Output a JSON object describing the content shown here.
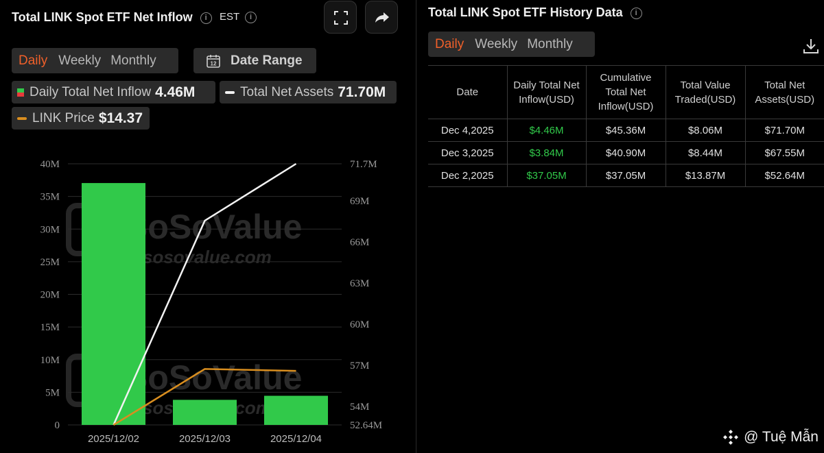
{
  "left": {
    "title": "Total LINK Spot ETF Net Inflow",
    "timezone": "EST",
    "period_tabs": [
      "Daily",
      "Weekly",
      "Monthly"
    ],
    "active_period": "Daily",
    "date_range_label": "Date Range",
    "calendar_icon_text": "12",
    "legend": {
      "inflow_label": "Daily Total Net Inflow",
      "inflow_value": "4.46M",
      "assets_label": "Total Net Assets",
      "assets_value": "71.70M",
      "price_label": "LINK Price",
      "price_value": "$14.37"
    },
    "colors": {
      "bar": "#31c94a",
      "assets_line": "#f2f2f2",
      "price_line": "#d98e1f",
      "active_tab": "#f0602a"
    },
    "watermark": {
      "brand": "SoSoValue",
      "url": "sosovalue.com"
    }
  },
  "chart_data": {
    "type": "bar",
    "categories": [
      "2025/12/02",
      "2025/12/03",
      "2025/12/04"
    ],
    "series": [
      {
        "name": "Daily Total Net Inflow",
        "type": "bar",
        "axis": "left",
        "values": [
          37.05,
          3.84,
          4.46
        ]
      },
      {
        "name": "Total Net Assets",
        "type": "line",
        "axis": "right",
        "values": [
          52.64,
          67.55,
          71.7
        ]
      },
      {
        "name": "LINK Price",
        "type": "line",
        "axis": "price",
        "values": [
          12.9,
          14.42,
          14.37
        ]
      }
    ],
    "y_left": {
      "ticks": [
        "0",
        "5M",
        "10M",
        "15M",
        "20M",
        "25M",
        "30M",
        "35M",
        "40M"
      ],
      "ylim": [
        0,
        40
      ]
    },
    "y_right": {
      "ticks": [
        "52.64M",
        "54M",
        "57M",
        "60M",
        "63M",
        "66M",
        "69M",
        "71.7M"
      ],
      "tick_values": [
        52.64,
        54,
        57,
        60,
        63,
        66,
        69,
        71.7
      ],
      "ylim": [
        52.64,
        71.7
      ]
    },
    "price_range": [
      12.9,
      20
    ],
    "grid": true
  },
  "right": {
    "title": "Total LINK Spot ETF History Data",
    "period_tabs": [
      "Daily",
      "Weekly",
      "Monthly"
    ],
    "active_period": "Daily",
    "columns": [
      "Date",
      "Daily Total Net Inflow(USD)",
      "Cumulative Total Net Inflow(USD)",
      "Total Value Traded(USD)",
      "Total Net Assets(USD)"
    ],
    "rows": [
      [
        "Dec 4,2025",
        "$4.46M",
        "$45.36M",
        "$8.06M",
        "$71.70M"
      ],
      [
        "Dec 3,2025",
        "$3.84M",
        "$40.90M",
        "$8.44M",
        "$67.55M"
      ],
      [
        "Dec 2,2025",
        "$37.05M",
        "$37.05M",
        "$13.87M",
        "$52.64M"
      ]
    ]
  },
  "credit": "@ Tuệ Mẫn"
}
